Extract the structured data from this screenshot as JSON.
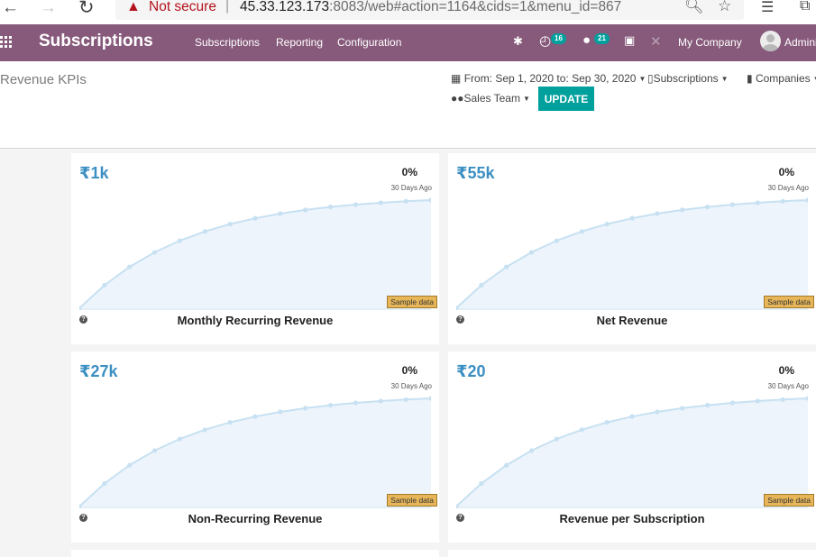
{
  "browser": {
    "security_label": "Not secure",
    "url_host": "45.33.123.173",
    "url_rest": ":8083/web#action=1164&cids=1&menu_id=867"
  },
  "navbar": {
    "app_name": "Subscriptions",
    "menu": [
      "Subscriptions",
      "Reporting",
      "Configuration"
    ],
    "activity_count": "16",
    "message_count": "21",
    "company": "My Company",
    "user": "Admini"
  },
  "control_panel": {
    "title": "Revenue KPIs",
    "date_filter": "From: Sep 1, 2020 to: Sep 30, 2020",
    "subscriptions_filter": "Subscriptions",
    "companies_filter": "Companies",
    "sales_team_filter": "Sales Team",
    "update_label": "UPDATE"
  },
  "colors": {
    "navbar": "#875a7b",
    "accent": "#00a09d",
    "kpi_value": "#3b8fc2",
    "chart_fill": "#edf4fb",
    "chart_line": "#c7e1f2",
    "sample_tag": "#e7b659"
  },
  "kpis": [
    {
      "value": "₹1k",
      "percent": "0%",
      "period": "30 Days Ago",
      "label": "Monthly Recurring Revenue",
      "sample": "Sample data"
    },
    {
      "value": "₹55k",
      "percent": "0%",
      "period": "30 Days Ago",
      "label": "Net Revenue",
      "sample": "Sample data"
    },
    {
      "value": "₹27k",
      "percent": "0%",
      "period": "30 Days Ago",
      "label": "Non-Recurring Revenue",
      "sample": "Sample data"
    },
    {
      "value": "₹20",
      "percent": "0%",
      "period": "30 Days Ago",
      "label": "Revenue per Subscription",
      "sample": "Sample data"
    }
  ]
}
